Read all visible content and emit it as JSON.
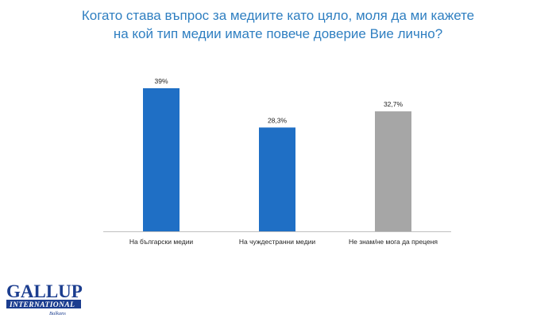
{
  "chart_data": {
    "type": "bar",
    "title_lines": [
      "Когато става въпрос за медиите като цяло, моля да ми кажете",
      "на кой тип медии имате повече доверие Вие лично?"
    ],
    "categories": [
      "На български медии",
      "На чуждестранни медии",
      "Не знам/не мога да преценя"
    ],
    "values": [
      39,
      28.3,
      32.7
    ],
    "value_labels": [
      "39%",
      "28,3%",
      "32,7%"
    ],
    "bar_colors": [
      "#1f6fc5",
      "#1f6fc5",
      "#a6a6a6"
    ],
    "ylim": [
      0,
      40
    ],
    "grid": false,
    "xlabel": "",
    "ylabel": ""
  },
  "logo": {
    "main": "GALLUP",
    "sub": "INTERNATIONAL",
    "region": "Balkans",
    "color": "#1b3d8f"
  },
  "colors": {
    "title": "#2f7fc1",
    "axis": "#bfbfbf",
    "text": "#222222"
  }
}
